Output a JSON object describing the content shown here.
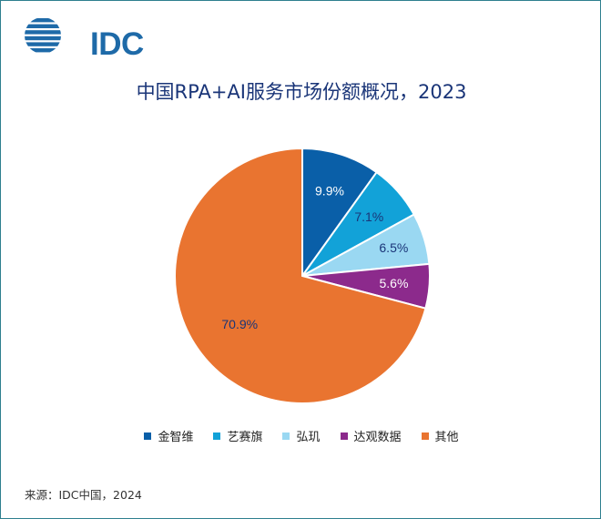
{
  "brand": {
    "name": "IDC",
    "color": "#1e6aa8"
  },
  "chart_data": {
    "type": "pie",
    "title": "中国RPA+AI服务市场份额概况，2023",
    "title_color": "#1a3578",
    "start_angle_deg": 0,
    "direction": "clockwise",
    "legend_position": "bottom",
    "slices": [
      {
        "name": "金智维",
        "value": 9.9,
        "label": "9.9%",
        "color": "#0a5fa8",
        "label_color": "#ffffff"
      },
      {
        "name": "艺赛旗",
        "value": 7.1,
        "label": "7.1%",
        "color": "#12a2d8",
        "label_color": "#1a3578"
      },
      {
        "name": "弘玑",
        "value": 6.5,
        "label": "6.5%",
        "color": "#9ad8f2",
        "label_color": "#1a3578"
      },
      {
        "name": "达观数据",
        "value": 5.6,
        "label": "5.6%",
        "color": "#8c2a8c",
        "label_color": "#ffffff"
      },
      {
        "name": "其他",
        "value": 70.9,
        "label": "70.9%",
        "color": "#e97430",
        "label_color": "#1a3578"
      }
    ]
  },
  "source": "来源：IDC中国，2024"
}
